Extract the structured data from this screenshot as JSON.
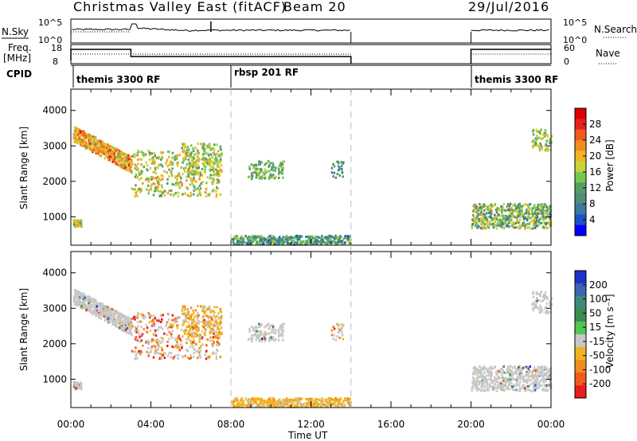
{
  "header": {
    "station": "Christmas Valley East (fitACF)",
    "beam": "Beam 20",
    "date": "29/Jul/2016"
  },
  "panels": {
    "nsky": {
      "left_label": "N.Sky",
      "left_ticks": [
        "10^5",
        "10^0"
      ],
      "right_ticks": [
        "10^5",
        "10^0"
      ],
      "right_label": "N.Search"
    },
    "freq": {
      "left_label_1": "Freq.",
      "left_label_2": "[MHz]",
      "left_ticks": [
        "18",
        "8"
      ],
      "right_ticks": [
        "60",
        "0"
      ],
      "right_label": "Nave"
    },
    "cpid": {
      "label": "CPID",
      "segments": [
        "themis 3300 RF",
        "rbsp 201 RF",
        "themis 3300 RF"
      ]
    }
  },
  "colors": {
    "power": [
      "#0000ff",
      "#1e50c8",
      "#3c78a0",
      "#508c78",
      "#50a064",
      "#78c850",
      "#c8d23c",
      "#f0b41e",
      "#f08c1e",
      "#f05a1e",
      "#e61e1e",
      "#dc0000"
    ],
    "velocity": [
      "#e61e1e",
      "#f05a1e",
      "#f08c1e",
      "#f0b41e",
      "#c8c8c8",
      "#50c850",
      "#3c8c50",
      "#3c8c78",
      "#3c64b4",
      "#1e32c8"
    ],
    "accent_gray": "#c8c8c8"
  },
  "chart_data": [
    {
      "type": "heatmap",
      "title": "Power",
      "xlabel": "Time UT",
      "ylabel": "Slant Range [km]",
      "x_ticks": [
        "00:00",
        "04:00",
        "08:00",
        "12:00",
        "16:00",
        "20:00",
        "00:00"
      ],
      "y_ticks": [
        "1000",
        "2000",
        "3000",
        "4000"
      ],
      "xlim_hours": [
        0,
        24
      ],
      "ylim_km": [
        200,
        4600
      ],
      "colorbar": {
        "label": "Power [dB]",
        "ticks": [
          "4",
          "8",
          "12",
          "16",
          "20",
          "24",
          "28"
        ],
        "range": [
          0,
          30
        ]
      },
      "data_gap_hours": [
        14,
        20
      ]
    },
    {
      "type": "heatmap",
      "title": "Velocity",
      "xlabel": "Time UT",
      "ylabel": "Slant Range [km]",
      "x_ticks": [
        "00:00",
        "04:00",
        "08:00",
        "12:00",
        "16:00",
        "20:00",
        "00:00"
      ],
      "y_ticks": [
        "1000",
        "2000",
        "3000",
        "4000"
      ],
      "xlim_hours": [
        0,
        24
      ],
      "ylim_km": [
        200,
        4600
      ],
      "colorbar": {
        "label": "Velocity [m s⁻¹]",
        "ticks": [
          "200",
          "100",
          "50",
          "15",
          "-15",
          "-50",
          "-100",
          "-200"
        ],
        "range": [
          -250,
          250
        ]
      },
      "data_gap_hours": [
        14,
        20
      ]
    }
  ],
  "footer": {
    "xlabel": "Time UT"
  }
}
